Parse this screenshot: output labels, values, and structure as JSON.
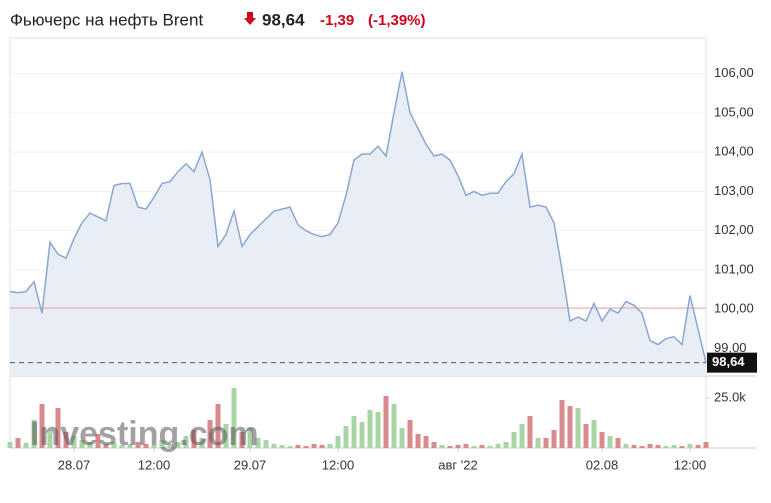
{
  "chart_data": {
    "type": "line",
    "title": "Фьючерс на нефть Brent",
    "last": {
      "value": 98.64,
      "label": "98,64"
    },
    "change": "-1,39",
    "change_pct": "(-1,39%)",
    "watermark": "Investing.com",
    "categories": [
      null,
      null,
      null,
      null,
      null,
      null,
      null,
      null,
      "28.07",
      null,
      null,
      null,
      null,
      null,
      null,
      null,
      null,
      null,
      "12:00",
      null,
      null,
      null,
      null,
      null,
      null,
      null,
      null,
      null,
      null,
      null,
      "29.07",
      null,
      null,
      null,
      null,
      null,
      null,
      null,
      null,
      null,
      null,
      "12:00",
      null,
      null,
      null,
      null,
      null,
      null,
      null,
      null,
      null,
      null,
      null,
      null,
      null,
      null,
      "авг '22",
      null,
      null,
      null,
      null,
      null,
      null,
      null,
      null,
      null,
      null,
      null,
      null,
      null,
      null,
      null,
      null,
      null,
      "02.08",
      null,
      null,
      null,
      null,
      null,
      null,
      null,
      null,
      null,
      null,
      "12:00",
      null,
      null
    ],
    "values": [
      100.45,
      100.42,
      100.45,
      100.7,
      99.9,
      101.7,
      101.4,
      101.3,
      101.8,
      102.2,
      102.45,
      102.35,
      102.25,
      103.15,
      103.2,
      103.2,
      102.6,
      102.55,
      102.85,
      103.2,
      103.25,
      103.5,
      103.7,
      103.5,
      104.0,
      103.3,
      101.6,
      101.9,
      102.5,
      101.6,
      101.9,
      102.1,
      102.3,
      102.5,
      102.55,
      102.6,
      102.15,
      102.0,
      101.9,
      101.85,
      101.9,
      102.2,
      102.9,
      103.8,
      103.95,
      103.95,
      104.15,
      103.9,
      105.0,
      106.05,
      105.0,
      104.6,
      104.2,
      103.9,
      103.95,
      103.8,
      103.4,
      102.9,
      103.0,
      102.9,
      102.95,
      102.95,
      103.25,
      103.45,
      103.95,
      102.6,
      102.65,
      102.6,
      102.2,
      101.0,
      99.7,
      99.8,
      99.7,
      100.15,
      99.7,
      100.0,
      99.9,
      100.2,
      100.1,
      99.9,
      99.2,
      99.1,
      99.25,
      99.3,
      99.1,
      100.35,
      99.5,
      98.64
    ],
    "color": "#8aa7d0",
    "fill": "#e9edf6",
    "ylim": [
      98.3,
      106.65
    ],
    "yticks": [
      {
        "value": 99,
        "label": "99,00"
      },
      {
        "value": 100,
        "label": "100,00"
      },
      {
        "value": 101,
        "label": "101,00"
      },
      {
        "value": 102,
        "label": "102,00"
      },
      {
        "value": 103,
        "label": "103,00"
      },
      {
        "value": 104,
        "label": "104,00"
      },
      {
        "value": 105,
        "label": "105,00"
      },
      {
        "value": 106,
        "label": "106,00"
      }
    ],
    "grid": true,
    "reference_line": 100.03,
    "volume": {
      "values": [
        3000,
        5000,
        2500,
        14000,
        22000,
        9000,
        20000,
        8000,
        6000,
        4000,
        3000,
        7000,
        2000,
        3000,
        1500,
        2000,
        3000,
        2000,
        1500,
        4000,
        2000,
        3000,
        6000,
        9000,
        5000,
        14000,
        22000,
        12000,
        30000,
        8000,
        10000,
        5000,
        4000,
        2000,
        1500,
        1000,
        1500,
        1000,
        2000,
        1500,
        2000,
        6000,
        11000,
        16000,
        13000,
        19000,
        18000,
        26000,
        22000,
        10000,
        14000,
        7000,
        6000,
        3000,
        1500,
        1000,
        1500,
        2000,
        1000,
        1500,
        1000,
        2000,
        3000,
        8000,
        12000,
        16000,
        5000,
        5000,
        9000,
        24000,
        21000,
        20000,
        12000,
        14000,
        8000,
        6000,
        5000,
        2000,
        1500,
        1000,
        2000,
        1500,
        1000,
        1500,
        1000,
        2000,
        1500,
        3000
      ],
      "ylim": [
        0,
        31500
      ],
      "yticks": [
        {
          "value": 25000,
          "label": "25.0k"
        }
      ],
      "up_color": "#a9d4a6",
      "down_color": "#d98a8e"
    }
  }
}
